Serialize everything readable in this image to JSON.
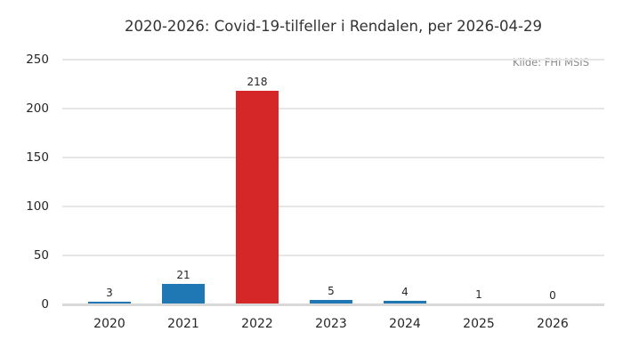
{
  "chart_data": {
    "type": "bar",
    "title": "2020-2026: Covid-19-tilfeller i Rendalen, per 2026-04-29",
    "source_annotation": "Kilde: FHI MSIS",
    "categories": [
      "2020",
      "2021",
      "2022",
      "2023",
      "2024",
      "2025",
      "2026"
    ],
    "values": [
      3,
      21,
      218,
      5,
      4,
      1,
      0
    ],
    "bar_colors": [
      "#1f77b4",
      "#1f77b4",
      "#d62728",
      "#1f77b4",
      "#1f77b4",
      "#1f77b4",
      "#1f77b4"
    ],
    "value_labels_shown": true,
    "xlabel": "",
    "ylabel": "",
    "ylim": [
      0,
      250
    ],
    "yticks": [
      0,
      50,
      100,
      150,
      200,
      250
    ],
    "grid": "horizontal",
    "legend": "none",
    "colors": {
      "default_bar": "#1f77b4",
      "highlight_bar": "#d62728",
      "gridline": "#e6e6e6",
      "axis_baseline": "#d9d9d9",
      "title_text": "#333333",
      "tick_text": "#262626",
      "source_text": "#8a8a8a",
      "background": "#ffffff"
    }
  }
}
